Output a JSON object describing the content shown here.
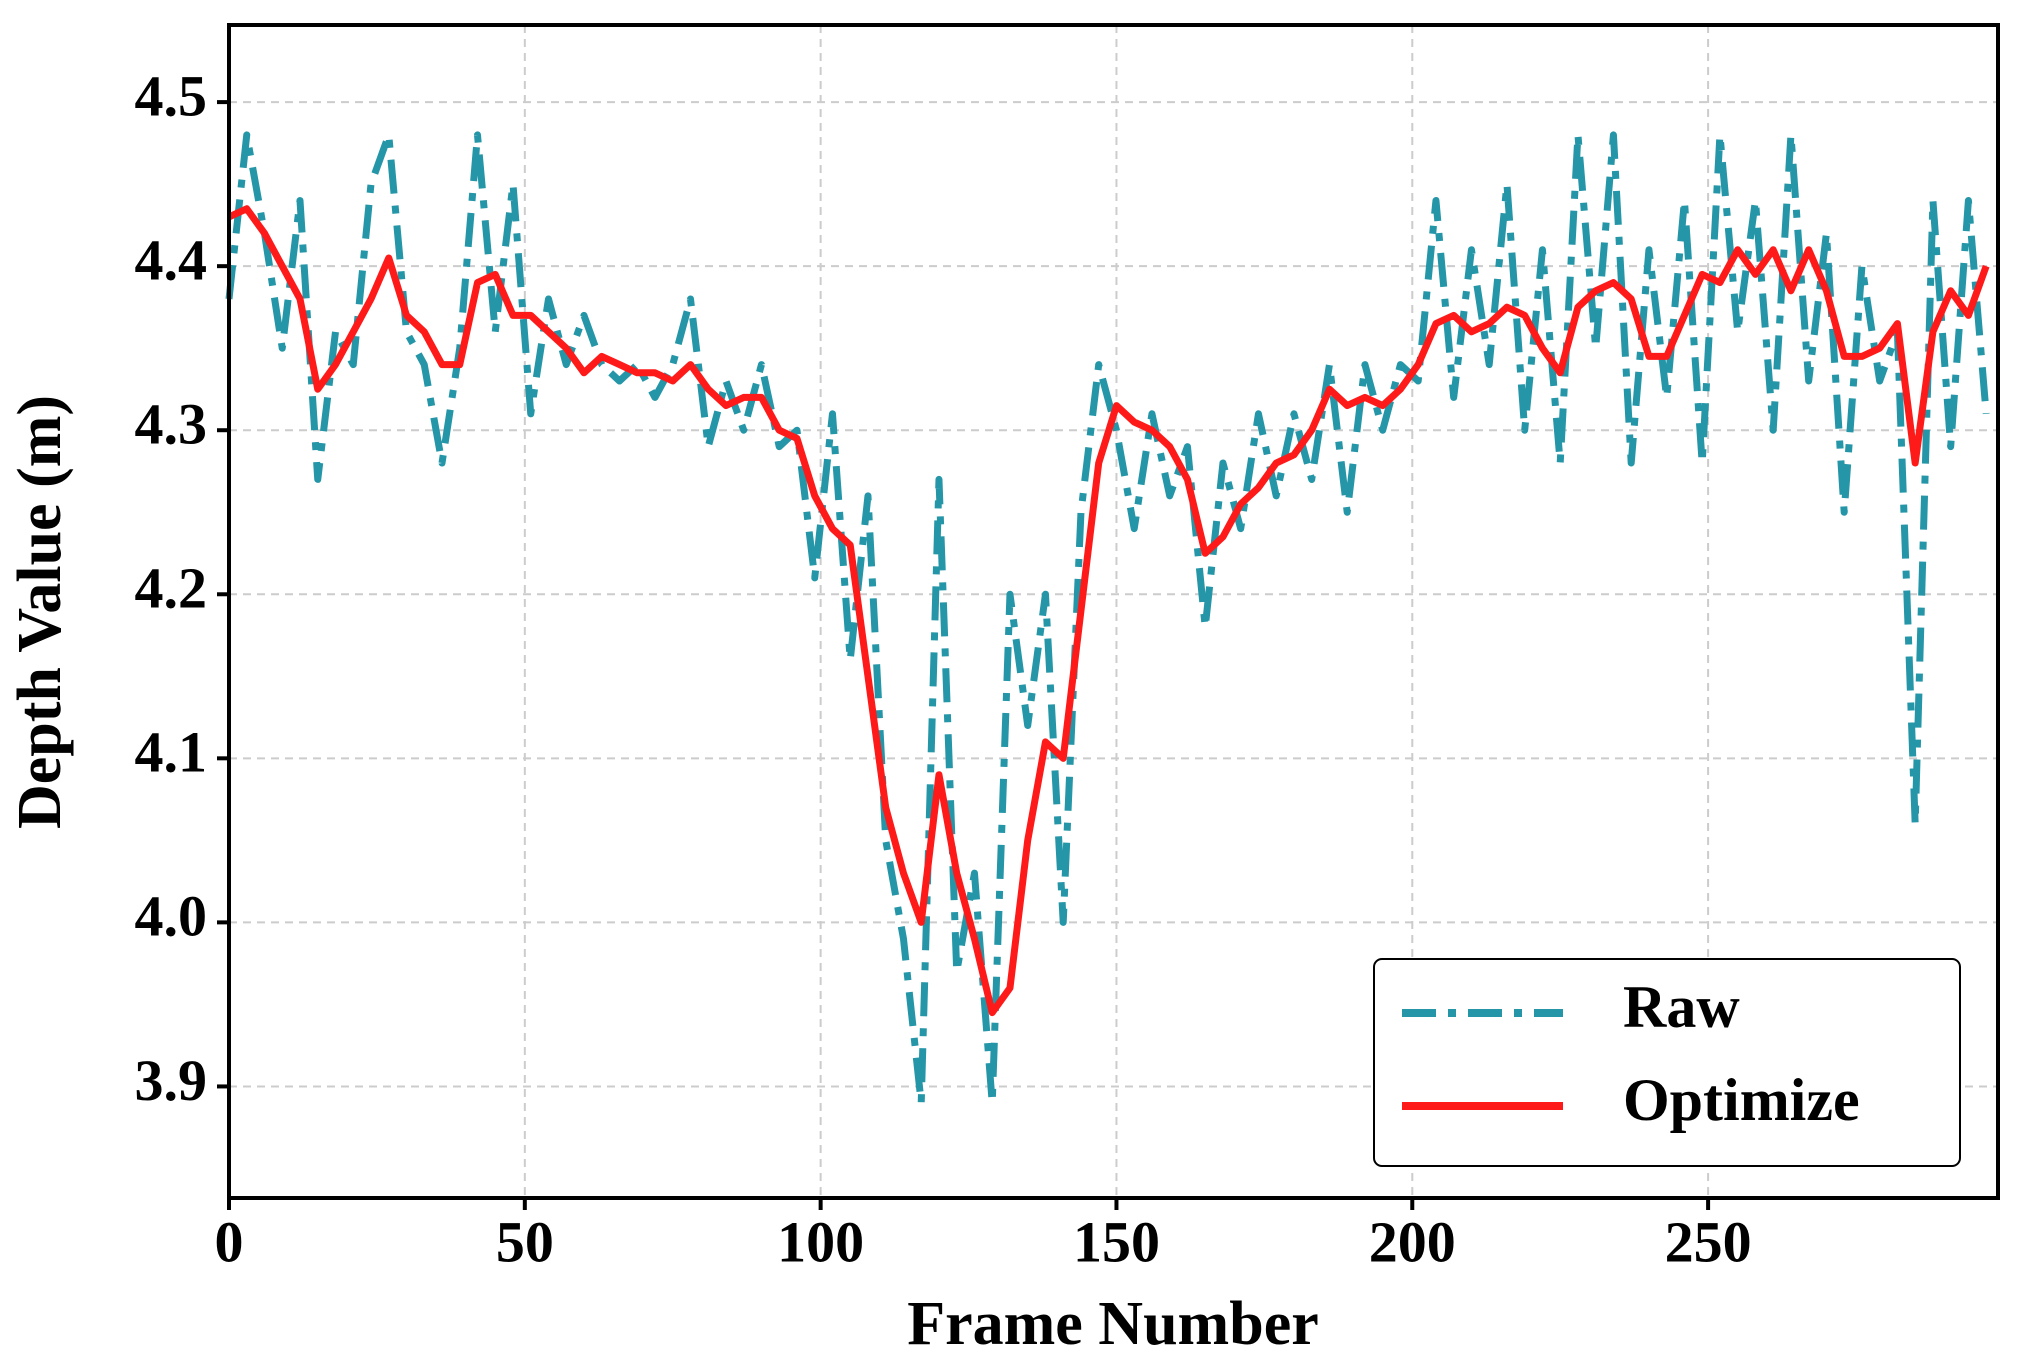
{
  "chart_data": {
    "type": "line",
    "x_label": "Frame Number",
    "y_label": "Depth Value (m)",
    "x": [
      0,
      3,
      6,
      9,
      12,
      15,
      18,
      21,
      24,
      27,
      30,
      33,
      36,
      39,
      42,
      45,
      48,
      51,
      54,
      57,
      60,
      63,
      66,
      69,
      72,
      75,
      78,
      81,
      84,
      87,
      90,
      93,
      96,
      99,
      102,
      105,
      108,
      111,
      114,
      117,
      120,
      123,
      126,
      129,
      132,
      135,
      138,
      141,
      144,
      147,
      150,
      153,
      156,
      159,
      162,
      165,
      168,
      171,
      174,
      177,
      180,
      183,
      186,
      189,
      192,
      195,
      198,
      201,
      204,
      207,
      210,
      213,
      216,
      219,
      222,
      225,
      228,
      231,
      234,
      237,
      240,
      243,
      246,
      249,
      252,
      255,
      258,
      261,
      264,
      267,
      270,
      273,
      276,
      279,
      282,
      285,
      288,
      291,
      294,
      297
    ],
    "series": [
      {
        "name": "Raw",
        "color": "#2596a8",
        "dash": "dashdot",
        "values": [
          4.38,
          4.48,
          4.42,
          4.35,
          4.44,
          4.27,
          4.36,
          4.34,
          4.45,
          4.48,
          4.36,
          4.34,
          4.28,
          4.35,
          4.48,
          4.36,
          4.45,
          4.31,
          4.38,
          4.34,
          4.37,
          4.34,
          4.33,
          4.34,
          4.32,
          4.34,
          4.38,
          4.29,
          4.33,
          4.3,
          4.34,
          4.29,
          4.3,
          4.21,
          4.31,
          4.16,
          4.26,
          4.05,
          3.99,
          3.89,
          4.27,
          3.97,
          4.03,
          3.89,
          4.2,
          4.12,
          4.2,
          4.0,
          4.25,
          4.34,
          4.3,
          4.24,
          4.31,
          4.26,
          4.29,
          4.18,
          4.28,
          4.24,
          4.31,
          4.26,
          4.31,
          4.27,
          4.34,
          4.25,
          4.34,
          4.3,
          4.34,
          4.33,
          4.44,
          4.32,
          4.41,
          4.34,
          4.45,
          4.3,
          4.41,
          4.28,
          4.48,
          4.35,
          4.48,
          4.28,
          4.41,
          4.32,
          4.44,
          4.28,
          4.48,
          4.36,
          4.44,
          4.3,
          4.48,
          4.33,
          4.42,
          4.25,
          4.4,
          4.33,
          4.36,
          4.06,
          4.44,
          4.29,
          4.44,
          4.31
        ]
      },
      {
        "name": "Optimize",
        "color": "#ff1a1a",
        "dash": "solid",
        "values": [
          4.43,
          4.435,
          4.42,
          4.4,
          4.38,
          4.325,
          4.34,
          4.36,
          4.38,
          4.405,
          4.37,
          4.36,
          4.34,
          4.34,
          4.39,
          4.395,
          4.37,
          4.37,
          4.36,
          4.35,
          4.335,
          4.345,
          4.34,
          4.335,
          4.335,
          4.33,
          4.34,
          4.325,
          4.315,
          4.32,
          4.32,
          4.3,
          4.295,
          4.26,
          4.24,
          4.23,
          4.15,
          4.07,
          4.03,
          4.0,
          4.09,
          4.03,
          3.99,
          3.945,
          3.96,
          4.05,
          4.11,
          4.1,
          4.19,
          4.28,
          4.315,
          4.305,
          4.3,
          4.29,
          4.27,
          4.225,
          4.235,
          4.255,
          4.265,
          4.28,
          4.285,
          4.3,
          4.325,
          4.315,
          4.32,
          4.315,
          4.325,
          4.34,
          4.365,
          4.37,
          4.36,
          4.365,
          4.375,
          4.37,
          4.35,
          4.335,
          4.375,
          4.385,
          4.39,
          4.38,
          4.345,
          4.345,
          4.37,
          4.395,
          4.39,
          4.41,
          4.395,
          4.41,
          4.385,
          4.41,
          4.385,
          4.345,
          4.345,
          4.35,
          4.365,
          4.28,
          4.36,
          4.385,
          4.37,
          4.4
        ]
      }
    ],
    "xlim": [
      0,
      299
    ],
    "ylim": [
      3.832,
      4.547
    ],
    "xticks": [
      0,
      50,
      100,
      150,
      200,
      250
    ],
    "yticks": [
      3.9,
      {
        "value": 4,
        "label": "4.0"
      },
      4.1,
      4.2,
      4.3,
      4.4,
      4.5
    ],
    "grid": true,
    "legend": "lower right"
  }
}
